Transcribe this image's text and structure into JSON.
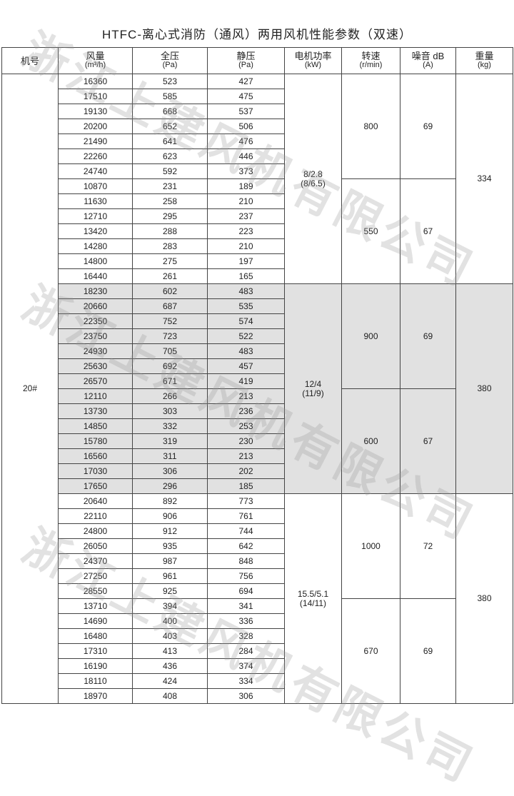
{
  "title": "HTFC-离心式消防（通风）两用风机性能参数（双速）",
  "watermark": "浙江上建风机有限公司",
  "headers": [
    {
      "label": "机号",
      "unit": ""
    },
    {
      "label": "风量",
      "unit": "(m³/h)"
    },
    {
      "label": "全压",
      "unit": "(Pa)"
    },
    {
      "label": "静压",
      "unit": "(Pa)"
    },
    {
      "label": "电机功率",
      "unit": "(kW)"
    },
    {
      "label": "转速",
      "unit": "(r/min)"
    },
    {
      "label": "噪音 dB",
      "unit": "(A)"
    },
    {
      "label": "重量",
      "unit": "(kg)"
    }
  ],
  "model": "20#",
  "groups": [
    {
      "motor": "8/2.8",
      "motor2": "(8/6.5)",
      "weight": "334",
      "shaded": false,
      "speeds": [
        {
          "speed": "800",
          "noise": "69",
          "rows": [
            [
              "16360",
              "523",
              "427"
            ],
            [
              "17510",
              "585",
              "475"
            ],
            [
              "19130",
              "668",
              "537"
            ],
            [
              "20200",
              "652",
              "506"
            ],
            [
              "21490",
              "641",
              "476"
            ],
            [
              "22260",
              "623",
              "446"
            ],
            [
              "24740",
              "592",
              "373"
            ]
          ]
        },
        {
          "speed": "550",
          "noise": "67",
          "rows": [
            [
              "10870",
              "231",
              "189"
            ],
            [
              "11630",
              "258",
              "210"
            ],
            [
              "12710",
              "295",
              "237"
            ],
            [
              "13420",
              "288",
              "223"
            ],
            [
              "14280",
              "283",
              "210"
            ],
            [
              "14800",
              "275",
              "197"
            ],
            [
              "16440",
              "261",
              "165"
            ]
          ]
        }
      ]
    },
    {
      "motor": "12/4",
      "motor2": "(11/9)",
      "weight": "380",
      "shaded": true,
      "speeds": [
        {
          "speed": "900",
          "noise": "69",
          "rows": [
            [
              "18230",
              "602",
              "483"
            ],
            [
              "20660",
              "687",
              "535"
            ],
            [
              "22350",
              "752",
              "574"
            ],
            [
              "23750",
              "723",
              "522"
            ],
            [
              "24930",
              "705",
              "483"
            ],
            [
              "25630",
              "692",
              "457"
            ],
            [
              "26570",
              "671",
              "419"
            ]
          ]
        },
        {
          "speed": "600",
          "noise": "67",
          "rows": [
            [
              "12110",
              "266",
              "213"
            ],
            [
              "13730",
              "303",
              "236"
            ],
            [
              "14850",
              "332",
              "253"
            ],
            [
              "15780",
              "319",
              "230"
            ],
            [
              "16560",
              "311",
              "213"
            ],
            [
              "17030",
              "306",
              "202"
            ],
            [
              "17650",
              "296",
              "185"
            ]
          ]
        }
      ]
    },
    {
      "motor": "15.5/5.1",
      "motor2": "(14/11)",
      "weight": "380",
      "shaded": false,
      "speeds": [
        {
          "speed": "1000",
          "noise": "72",
          "rows": [
            [
              "20640",
              "892",
              "773"
            ],
            [
              "22110",
              "906",
              "761"
            ],
            [
              "24800",
              "912",
              "744"
            ],
            [
              "26050",
              "935",
              "642"
            ],
            [
              "24370",
              "987",
              "848"
            ],
            [
              "27250",
              "961",
              "756"
            ],
            [
              "28550",
              "925",
              "694"
            ]
          ]
        },
        {
          "speed": "670",
          "noise": "69",
          "rows": [
            [
              "13710",
              "394",
              "341"
            ],
            [
              "14690",
              "400",
              "336"
            ],
            [
              "16480",
              "403",
              "328"
            ],
            [
              "17310",
              "413",
              "284"
            ],
            [
              "16190",
              "436",
              "374"
            ],
            [
              "18110",
              "424",
              "334"
            ],
            [
              "18970",
              "408",
              "306"
            ]
          ]
        }
      ]
    }
  ]
}
